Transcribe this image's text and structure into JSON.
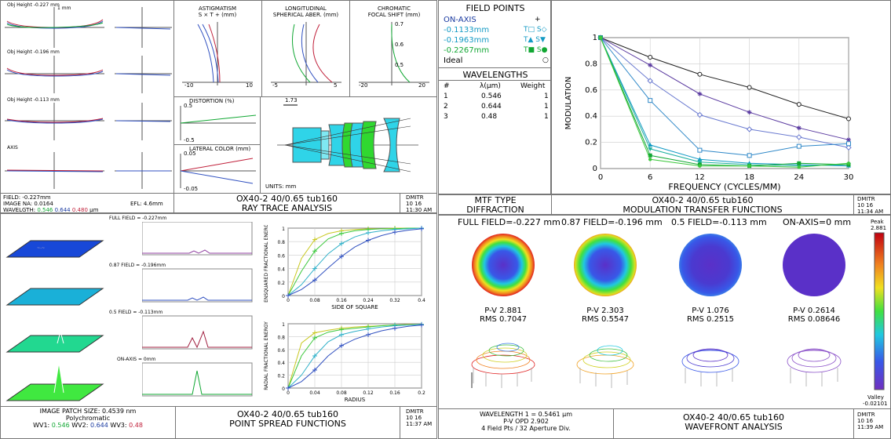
{
  "ray_trace": {
    "fan_labels": [
      "Obj Height -0.227 mm",
      "Obj Height -0.196 mm",
      "Obj Height -0.113 mm",
      "AXIS"
    ],
    "fan_scale": "1 mm",
    "astig_title": "ASTIGMATISM",
    "astig_sub": "S × T + (mm)",
    "astig_ticks": [
      "-10",
      "10"
    ],
    "long_title": "LONGITUDINAL",
    "long_sub": "SPHERICAL ABER. (mm)",
    "long_ticks": [
      "-5",
      "5"
    ],
    "chrom_title": "CHROMATIC",
    "chrom_sub": "FOCAL SHIFT (mm)",
    "chrom_ticks": [
      "-20",
      "20",
      "0.7",
      "0.6",
      "0.5"
    ],
    "dist_title": "DISTORTION (%)",
    "dist_ticks": [
      "0.5",
      "-0.5"
    ],
    "latcol_title": "LATERAL COLOR (mm)",
    "latcol_ticks": [
      "0.05",
      "-0.05"
    ],
    "scale_bar": "1.73",
    "units": "UNITS: mm",
    "field": "FIELD: -0.227mm",
    "na": "IMAGE NA: 0.0164",
    "efl": "EFL: 4.6mm",
    "wl_prefix": "WAVELGTH:",
    "wl1": "0.546",
    "wl2": "0.644",
    "wl3": "0.480",
    "wl_unit": "µm",
    "title1": "OX40-2 40/0.65 tub160",
    "title2": "RAY TRACE ANALYSIS",
    "stamp1": "DMITR",
    "stamp2": "10  16",
    "stamp3": "11:30 AM"
  },
  "field_points": {
    "title": "FIELD POINTS",
    "rows": [
      {
        "name": "ON-AXIS",
        "marks": "+"
      },
      {
        "name": "-0.1133mm",
        "marks": "T□ S◇"
      },
      {
        "name": "-0.1963mm",
        "marks": "T▲ S▼"
      },
      {
        "name": "-0.2267mm",
        "marks": "T■ S●"
      },
      {
        "name": "Ideal",
        "marks": "○"
      }
    ],
    "wl_title": "WAVELENGTHS",
    "wl_headers": [
      "#",
      "λ(µm)",
      "Weight"
    ],
    "wl_rows": [
      [
        "1",
        "0.546",
        "1"
      ],
      [
        "2",
        "0.644",
        "1"
      ],
      [
        "3",
        "0.48",
        "1"
      ]
    ]
  },
  "mtf": {
    "type1": "MTF TYPE",
    "type2": "DIFFRACTION",
    "title1": "OX40-2 40/0.65 tub160",
    "title2": "MODULATION TRANSFER FUNCTIONS",
    "stamp1": "DMITR",
    "stamp2": "10  16",
    "stamp3": "11:34 AM"
  },
  "psf": {
    "labels": [
      "FULL FIELD = -0.227mm",
      "0.87 FIELD = -0.196mm",
      "0.5 FIELD = -0.113mm",
      "ON-AXIS = 0mm"
    ],
    "patch": "IMAGE PATCH SIZE:  0.4539 nm",
    "poly": "Polychromatic",
    "wv1": "0.546",
    "wv2": "0.644",
    "wv3": "0.48",
    "title1": "OX40-2 40/0.65 tub160",
    "title2": "POINT SPREAD FUNCTIONS",
    "stamp1": "DMITR",
    "stamp2": "10  16",
    "stamp3": "11:37 AM"
  },
  "wavefront": {
    "headers": [
      "FULL FIELD=-0.227 mm",
      "0.87 FIELD=-0.196 mm",
      "0.5 FIELD=-0.113 mm",
      "ON-AXIS=0 mm"
    ],
    "pv": [
      "P-V 2.881",
      "P-V 2.303",
      "P-V 1.076",
      "P-V 0.2614"
    ],
    "rms": [
      "RMS 0.7047",
      "RMS 0.5547",
      "RMS 0.2515",
      "RMS 0.08646"
    ],
    "peak_label": "Peak",
    "peak_value": "2.881",
    "valley_label": "Valley",
    "valley_value": "-0.02101",
    "wl": "WAVELENGTH 1 = 0.5461 µm",
    "opd": "P-V OPD 2.902",
    "pts": "4 Field Pts / 32 Aperture Div.",
    "title1": "OX40-2 40/0.65 tub160",
    "title2": "WAVEFRONT ANALYSIS",
    "stamp1": "DMITR",
    "stamp2": "10  16",
    "stamp3": "11:39 AM"
  },
  "colors": {
    "blue": "#1a3aa0",
    "cyan": "#139ac4",
    "green": "#11a733",
    "red": "#c0203a"
  },
  "chart_data": [
    {
      "type": "line",
      "name": "MTF",
      "xlabel": "FREQUENCY (CYCLES/MM)",
      "ylabel": "MODULATION",
      "xlim": [
        0,
        30
      ],
      "ylim": [
        0,
        1
      ],
      "xticks": [
        0,
        6,
        12,
        18,
        24,
        30
      ],
      "yticks": [
        0,
        0.2,
        0.4,
        0.6,
        0.8,
        1
      ],
      "x": [
        0,
        6,
        12,
        18,
        24,
        30
      ],
      "series": [
        {
          "color": "#222222",
          "marker": "circle",
          "values": [
            1,
            0.85,
            0.72,
            0.62,
            0.49,
            0.38
          ]
        },
        {
          "color": "#5a3aa0",
          "marker": "star",
          "values": [
            1,
            0.79,
            0.57,
            0.43,
            0.31,
            0.22
          ]
        },
        {
          "color": "#6a7ad0",
          "marker": "diamond",
          "values": [
            1,
            0.67,
            0.41,
            0.3,
            0.24,
            0.16
          ]
        },
        {
          "color": "#2f88c8",
          "marker": "square",
          "values": [
            1,
            0.52,
            0.14,
            0.1,
            0.17,
            0.19
          ]
        },
        {
          "color": "#139ac4",
          "marker": "triangle",
          "values": [
            1,
            0.18,
            0.07,
            0.04,
            0.03,
            0.02
          ]
        },
        {
          "color": "#20b0a0",
          "marker": "down-triangle",
          "values": [
            1,
            0.15,
            0.05,
            0.03,
            0.02,
            0.03
          ]
        },
        {
          "color": "#11a733",
          "marker": "square-filled",
          "values": [
            1,
            0.1,
            0.03,
            0.02,
            0.04,
            0.03
          ]
        },
        {
          "color": "#3cc83c",
          "marker": "dot",
          "values": [
            1,
            0.07,
            0.02,
            0.02,
            0.01,
            0.04
          ]
        }
      ]
    },
    {
      "type": "line",
      "name": "Ensquared",
      "xlabel": "SIDE OF SQUARE",
      "ylabel": "ENSQUARED FRACTIONAL ENERGY",
      "xlim": [
        0,
        0.4
      ],
      "ylim": [
        0,
        1
      ],
      "xticks": [
        0,
        0.08,
        0.16,
        0.24,
        0.32,
        0.4
      ],
      "yticks": [
        0,
        0.2,
        0.4,
        0.6,
        0.8,
        1
      ],
      "x": [
        0,
        0.04,
        0.08,
        0.12,
        0.16,
        0.2,
        0.24,
        0.28,
        0.32,
        0.36,
        0.4
      ],
      "series": [
        {
          "color": "#c8c820",
          "values": [
            0,
            0.55,
            0.83,
            0.92,
            0.96,
            0.98,
            0.99,
            0.99,
            1,
            1,
            1
          ]
        },
        {
          "color": "#3cc83c",
          "values": [
            0,
            0.36,
            0.66,
            0.84,
            0.92,
            0.96,
            0.98,
            0.99,
            0.99,
            1,
            1
          ]
        },
        {
          "color": "#2fb0c8",
          "values": [
            0,
            0.16,
            0.4,
            0.62,
            0.77,
            0.87,
            0.93,
            0.96,
            0.98,
            0.99,
            1
          ]
        },
        {
          "color": "#3050c0",
          "values": [
            0,
            0.09,
            0.23,
            0.41,
            0.58,
            0.72,
            0.82,
            0.89,
            0.94,
            0.97,
            0.99
          ]
        }
      ]
    },
    {
      "type": "line",
      "name": "Radial",
      "xlabel": "RADIUS",
      "ylabel": "RADIAL FRACTIONAL ENERGY",
      "xlim": [
        0,
        0.2
      ],
      "ylim": [
        0,
        1
      ],
      "xticks": [
        0,
        0.04,
        0.08,
        0.12,
        0.16,
        0.2
      ],
      "yticks": [
        0,
        0.2,
        0.4,
        0.6,
        0.8,
        1
      ],
      "x": [
        0,
        0.02,
        0.04,
        0.06,
        0.08,
        0.1,
        0.12,
        0.14,
        0.16,
        0.18,
        0.2
      ],
      "series": [
        {
          "color": "#c8c820",
          "values": [
            0,
            0.7,
            0.86,
            0.9,
            0.93,
            0.95,
            0.96,
            0.97,
            0.98,
            0.99,
            0.99
          ]
        },
        {
          "color": "#3cc83c",
          "values": [
            0,
            0.5,
            0.78,
            0.87,
            0.91,
            0.93,
            0.95,
            0.97,
            0.98,
            0.98,
            0.99
          ]
        },
        {
          "color": "#2fb0c8",
          "values": [
            0,
            0.2,
            0.5,
            0.72,
            0.83,
            0.88,
            0.92,
            0.95,
            0.97,
            0.98,
            0.99
          ]
        },
        {
          "color": "#3050c0",
          "values": [
            0,
            0.1,
            0.28,
            0.5,
            0.66,
            0.76,
            0.83,
            0.89,
            0.93,
            0.96,
            0.98
          ]
        }
      ]
    }
  ]
}
